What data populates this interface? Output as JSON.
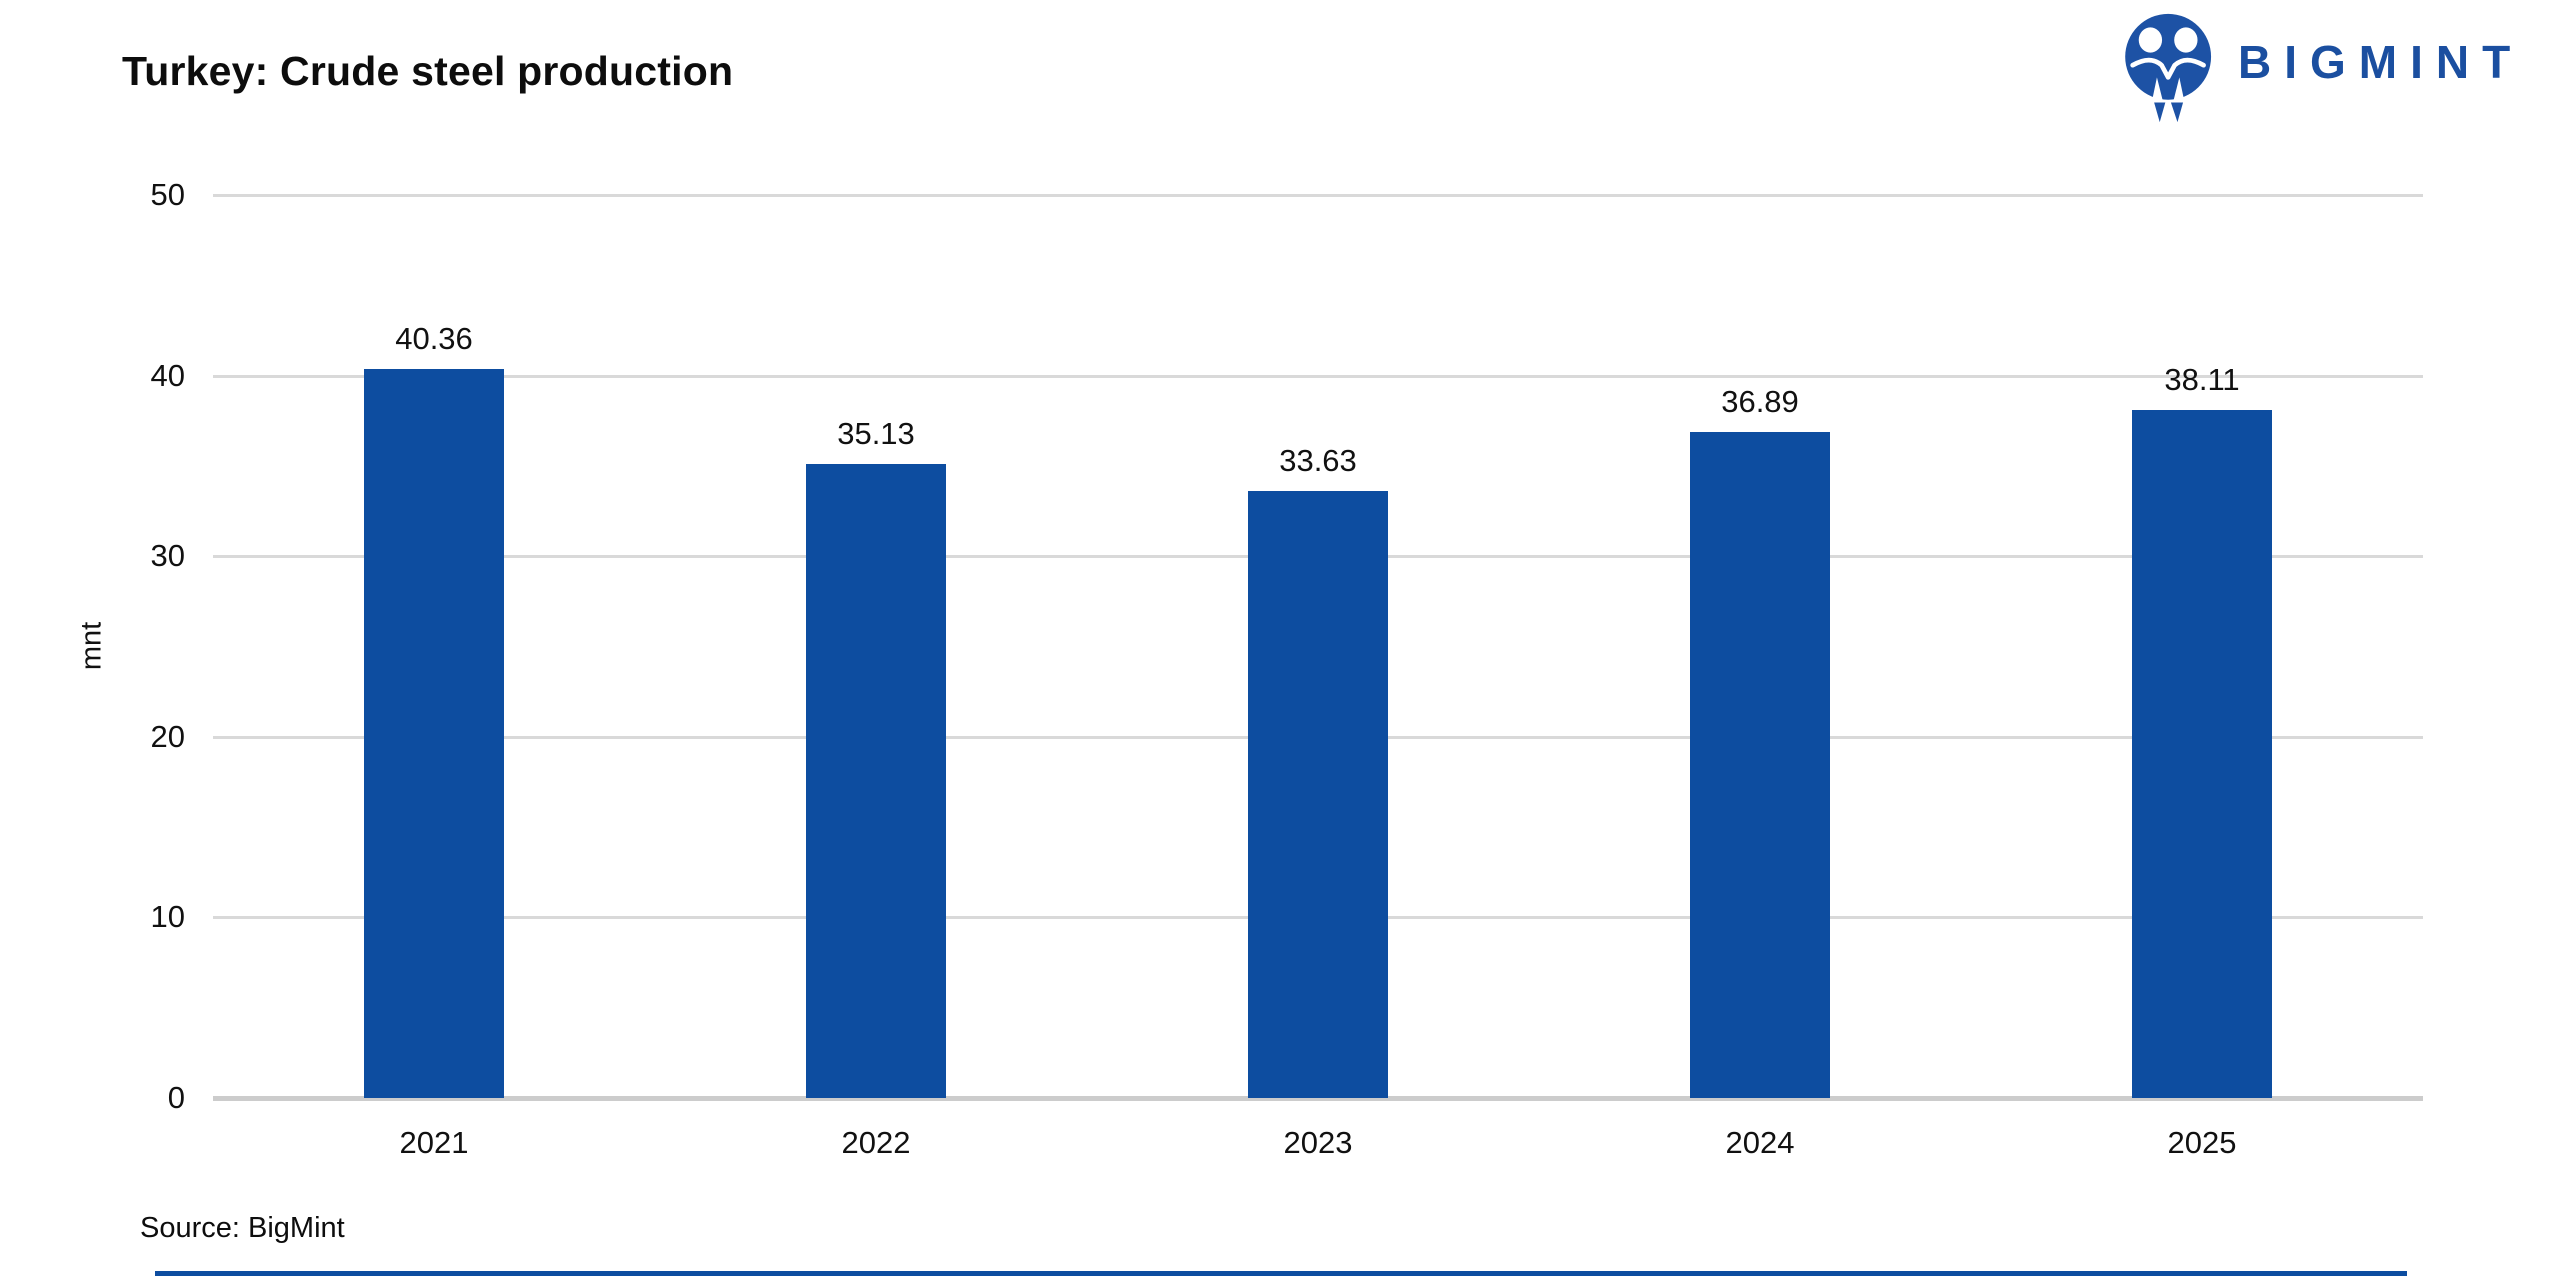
{
  "header": {
    "title": "Turkey: Crude steel production",
    "logo": {
      "text": "BIGMINT",
      "icon": "bigmint-people-mark"
    }
  },
  "chart_data": {
    "type": "bar",
    "title": "Turkey: Crude steel production",
    "categories": [
      "2021",
      "2022",
      "2023",
      "2024",
      "2025"
    ],
    "values": [
      40.36,
      35.13,
      33.63,
      36.89,
      38.11
    ],
    "data_labels": [
      "40.36",
      "35.13",
      "33.63",
      "36.89",
      "38.11"
    ],
    "xlabel": "",
    "ylabel": "mnt",
    "ylim": [
      0,
      50
    ],
    "yticks": [
      0,
      10,
      20,
      30,
      40,
      50
    ],
    "grid": true,
    "legend_position": "none",
    "bar_color": "#0d4da0"
  },
  "footer": {
    "source": "Source: BigMint"
  },
  "colors": {
    "bar": "#0d4da0",
    "logo_icon": "#1d52a5",
    "logo_text": "#1b4fa0",
    "gridline": "#d9d9d9",
    "axis_line": "#cccccc",
    "text": "#000000",
    "bottom_rule": "#0d4da0"
  }
}
